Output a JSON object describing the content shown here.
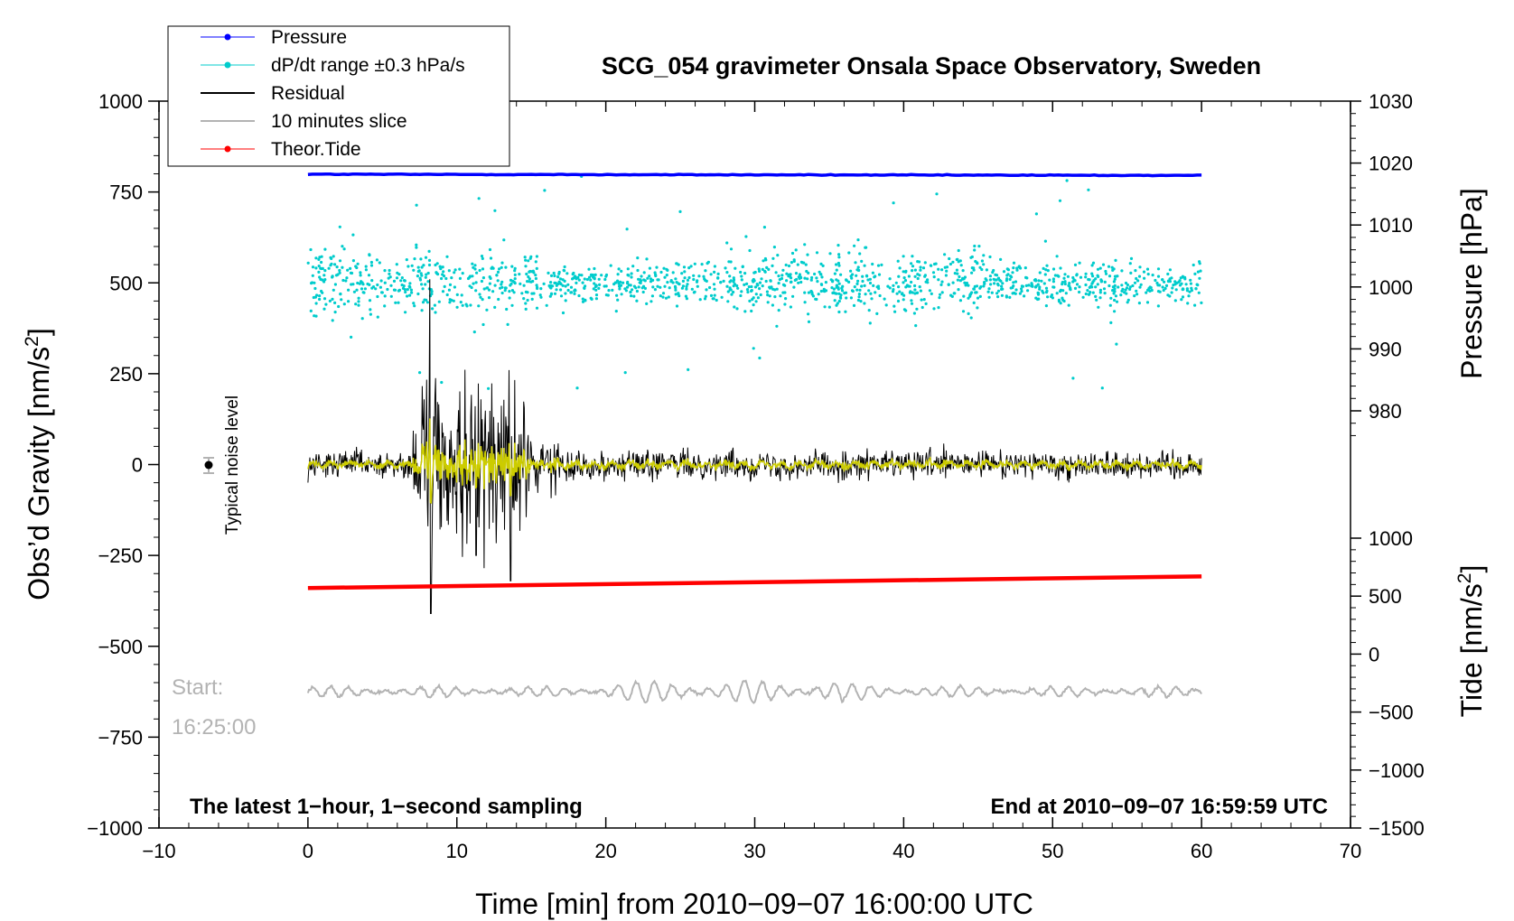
{
  "chart_data": {
    "type": "line",
    "title": "SCG_054 gravimeter Onsala Space Observatory, Sweden",
    "xlabel": "Time [min] from 2010−09−07 16:00:00 UTC",
    "ylabel_left_main": "Obs’d Gravity [nm/s",
    "ylabel_left_sup": "2",
    "ylabel_left_end": "]",
    "ylabel_right_pressure": "Pressure [hPa]",
    "ylabel_right_tide_main": "Tide [nm/s",
    "ylabel_right_tide_sup": "2",
    "ylabel_right_tide_end": "]",
    "xlim": [
      -10,
      70
    ],
    "ylim_gravity": [
      -1000,
      1000
    ],
    "ylim_pressure_shown": [
      980,
      1030
    ],
    "ylim_tide": [
      -1500,
      1000
    ],
    "x_ticks": [
      "−10",
      "0",
      "10",
      "20",
      "30",
      "40",
      "50",
      "60",
      "70"
    ],
    "y_ticks_gravity": [
      "1000",
      "750",
      "500",
      "250",
      "0",
      "−250",
      "−500",
      "−750",
      "−1000"
    ],
    "y_ticks_pressure": [
      "1030",
      "1020",
      "1010",
      "1000",
      "990",
      "980"
    ],
    "y_ticks_tide": [
      "1000",
      "500",
      "0",
      "−500",
      "−1000",
      "−1500"
    ],
    "legend": [
      {
        "label": "Pressure",
        "color": "#0000ff",
        "marker": "dot"
      },
      {
        "label": "dP/dt range ±0.3 hPa/s",
        "color": "#00cccc",
        "marker": "dot"
      },
      {
        "label": "Residual",
        "color": "#000000",
        "marker": "line"
      },
      {
        "label": "10 minutes slice",
        "color": "#b3b3b3",
        "marker": "line"
      },
      {
        "label": "Theor.Tide",
        "color": "#ff0000",
        "marker": "dot"
      }
    ],
    "series": [
      {
        "name": "Pressure",
        "axis": "pressure",
        "color": "#0000ff",
        "x": [
          0,
          60
        ],
        "values": [
          1018.2,
          1018.0
        ]
      },
      {
        "name": "dP/dt range ±0.3 hPa/s",
        "axis": "gravity",
        "color": "#00cccc",
        "center": 500,
        "typical_spread": 40,
        "max_spread": 300
      },
      {
        "name": "Residual",
        "axis": "gravity",
        "color": "#000000",
        "quake_window_min": [
          7,
          15
        ],
        "peak": 510,
        "trough": -410
      },
      {
        "name": "Residual (smoothed)",
        "axis": "gravity",
        "color": "#cccc00"
      },
      {
        "name": "10 minutes slice",
        "axis": "gravity",
        "color": "#b3b3b3",
        "start": "16:25:00",
        "offset": -625
      },
      {
        "name": "Theor.Tide",
        "axis": "tide",
        "color": "#ff0000",
        "x": [
          0,
          60
        ],
        "values": [
          570,
          670
        ]
      }
    ],
    "annotations": {
      "noise_label": "Typical noise level",
      "start_label": "Start:",
      "start_time": "16:25:00",
      "sampling_note": "The latest 1−hour, 1−second sampling",
      "end_note": "End at 2010−09−07 16:59:59 UTC"
    }
  },
  "colors": {
    "pressure": "#0000ff",
    "dpdt": "#00cccc",
    "residual": "#000000",
    "smoothed": "#cccc00",
    "slice": "#b3b3b3",
    "tide": "#ff0000"
  }
}
